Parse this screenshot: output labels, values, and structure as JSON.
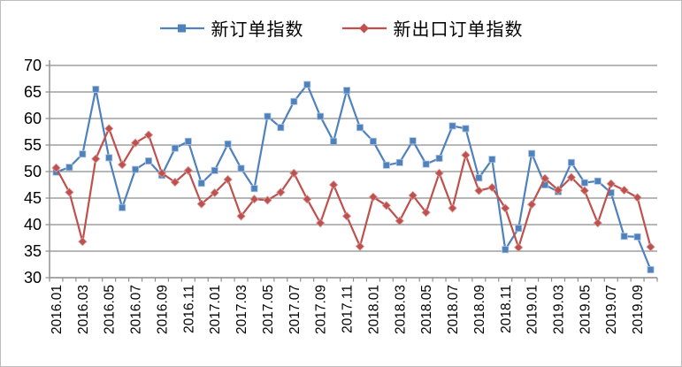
{
  "legend": {
    "series1_label": "新订单指数",
    "series2_label": "新出口订单指数"
  },
  "colors": {
    "series1": "#4f81bd",
    "series2": "#c0504d",
    "gridline": "#8c8c8c",
    "axis": "#8c8c8c",
    "text": "#000000",
    "frame_border": "#bdbdbd",
    "background": "#ffffff"
  },
  "chart_data": {
    "type": "line",
    "title": "",
    "xlabel": "",
    "ylabel": "",
    "ylim": [
      30,
      70
    ],
    "yticks": [
      30,
      35,
      40,
      45,
      50,
      55,
      60,
      65,
      70
    ],
    "grid": true,
    "legend_position": "top",
    "x_label_every": 2,
    "x": [
      "2016.01",
      "2016.02",
      "2016.03",
      "2016.04",
      "2016.05",
      "2016.06",
      "2016.07",
      "2016.08",
      "2016.09",
      "2016.10",
      "2016.11",
      "2016.12",
      "2017.01",
      "2017.02",
      "2017.03",
      "2017.04",
      "2017.05",
      "2017.06",
      "2017.07",
      "2017.08",
      "2017.09",
      "2017.10",
      "2017.11",
      "2017.12",
      "2018.01",
      "2018.02",
      "2018.03",
      "2018.04",
      "2018.05",
      "2018.06",
      "2018.07",
      "2018.08",
      "2018.09",
      "2018.10",
      "2018.11",
      "2018.12",
      "2019.01",
      "2019.02",
      "2019.03",
      "2019.04",
      "2019.05",
      "2019.06",
      "2019.07",
      "2019.08",
      "2019.09",
      "2019.10"
    ],
    "series": [
      {
        "name": "新订单指数",
        "color": "#4f81bd",
        "marker": "square",
        "values": [
          49.9,
          50.8,
          53.3,
          65.5,
          52.6,
          43.2,
          50.4,
          52.0,
          49.3,
          54.4,
          55.7,
          47.8,
          50.2,
          55.2,
          50.6,
          46.8,
          60.4,
          58.3,
          63.2,
          66.4,
          60.4,
          55.7,
          65.3,
          58.3,
          55.7,
          51.2,
          51.7,
          55.8,
          51.4,
          52.5,
          58.6,
          58.1,
          48.8,
          52.3,
          35.3,
          39.3,
          53.4,
          47.5,
          46.2,
          51.7,
          47.9,
          48.2,
          46.0,
          37.8,
          37.7,
          31.5
        ]
      },
      {
        "name": "新出口订单指数",
        "color": "#c0504d",
        "marker": "diamond",
        "values": [
          50.7,
          46.1,
          36.8,
          52.4,
          58.1,
          51.3,
          55.4,
          56.9,
          49.7,
          48.0,
          50.2,
          43.9,
          46.0,
          48.5,
          41.6,
          44.8,
          44.6,
          46.1,
          49.7,
          44.8,
          40.3,
          47.5,
          41.6,
          35.9,
          45.2,
          43.6,
          40.7,
          45.5,
          42.3,
          49.7,
          43.1,
          53.1,
          46.4,
          47.0,
          43.1,
          35.7,
          43.8,
          48.7,
          46.5,
          48.9,
          46.4,
          40.3,
          47.7,
          46.5,
          45.1,
          35.8
        ]
      }
    ]
  }
}
